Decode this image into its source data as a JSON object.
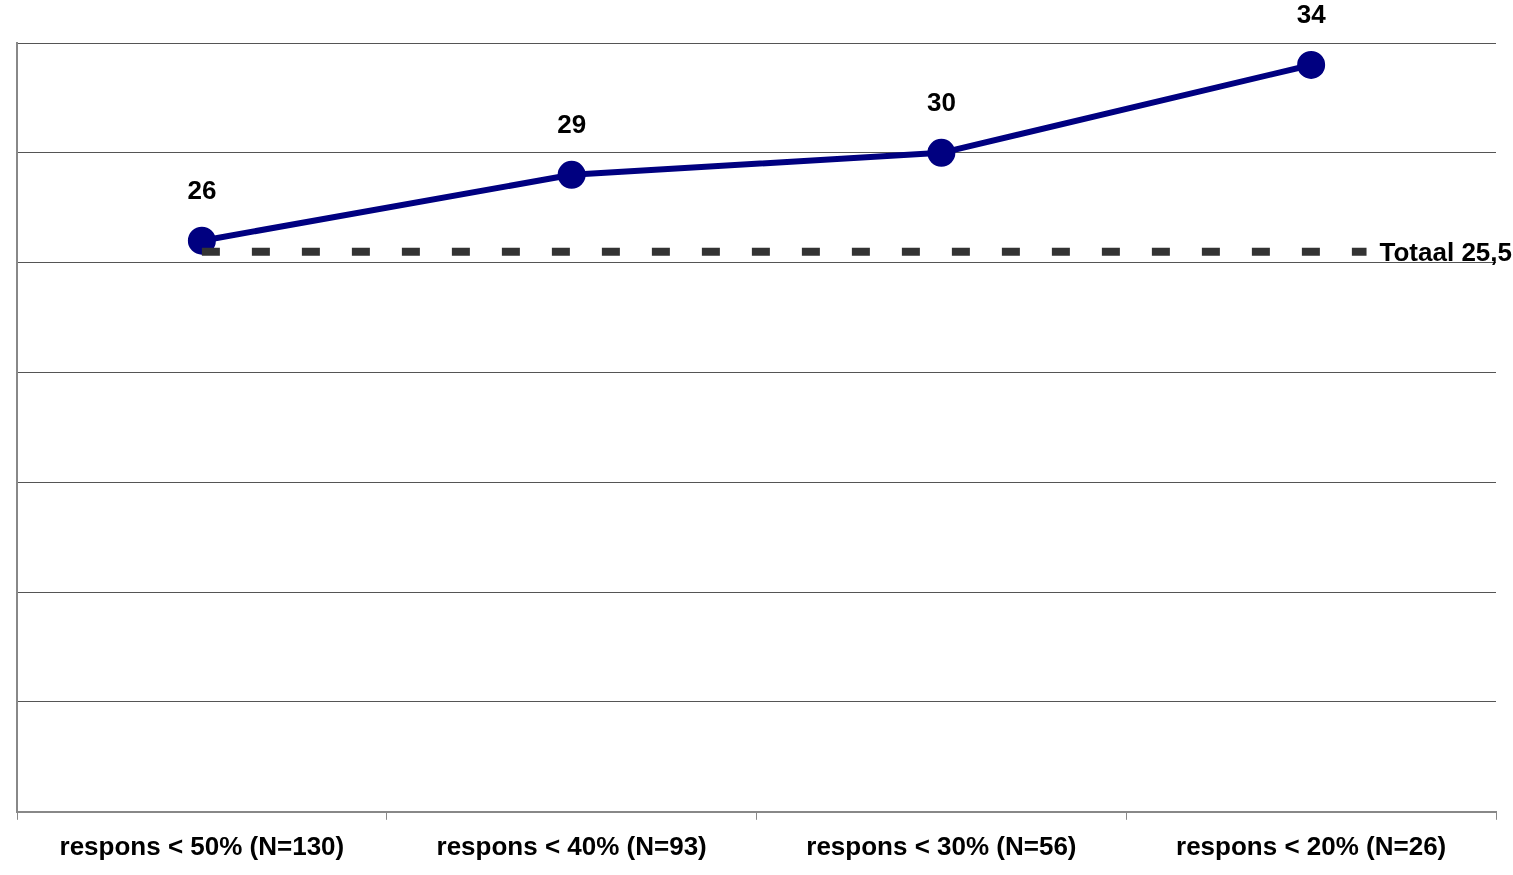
{
  "chart_data": {
    "type": "line",
    "categories": [
      "respons < 50% (N=130)",
      "respons < 40% (N=93)",
      "respons < 30% (N=56)",
      "respons < 20% (N=26)"
    ],
    "series": [
      {
        "color": "#000080",
        "values": [
          26,
          29,
          30,
          34
        ]
      }
    ],
    "ylim": [
      0,
      35
    ],
    "yticks": [
      {
        "value": 0,
        "label": null
      },
      {
        "value": 5,
        "label": null
      },
      {
        "value": 10,
        "label": null
      },
      {
        "value": 15,
        "label": null
      },
      {
        "value": 20,
        "label": null
      },
      {
        "value": 25,
        "label": null
      },
      {
        "value": 30,
        "label": null
      },
      {
        "value": 35,
        "label": null
      }
    ],
    "tick_labels": "x",
    "grid": "y",
    "marker": "circle",
    "line_style": "solid",
    "data_labels": true,
    "ref_lines": [
      {
        "axis": "y",
        "value": 25.5,
        "label": "Totaal 25,5",
        "color": "#333333",
        "line_style": "dashed"
      }
    ]
  }
}
